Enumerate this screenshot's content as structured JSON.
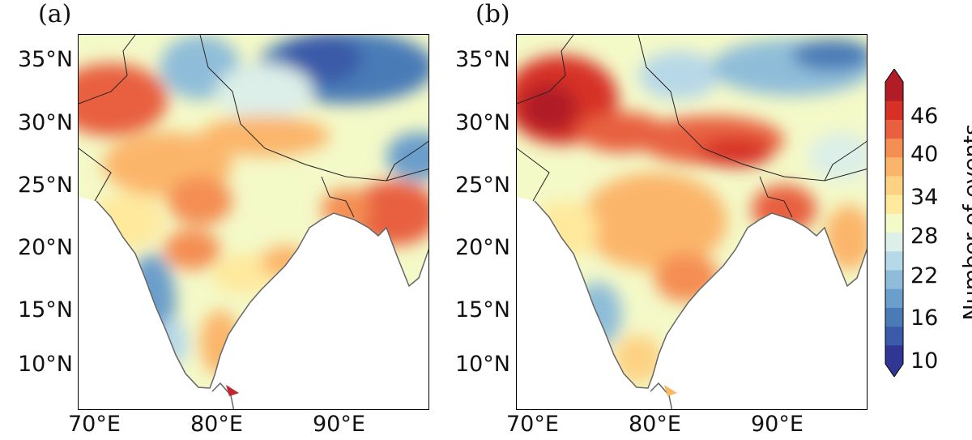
{
  "panels": [
    {
      "label": "(a)"
    },
    {
      "label": "(b)"
    }
  ],
  "axes": {
    "lat_ticks": [
      "35°N",
      "30°N",
      "25°N",
      "20°N",
      "15°N",
      "10°N"
    ],
    "lon_ticks": [
      "70°E",
      "80°E",
      "90°E"
    ]
  },
  "colorbar": {
    "label": "Number of events",
    "ticks": [
      "46",
      "40",
      "34",
      "28",
      "22",
      "16",
      "10"
    ],
    "colors": [
      "#313695",
      "#3b5aa8",
      "#4a7bb7",
      "#6a9ecb",
      "#8fbdd9",
      "#b7d8e8",
      "#dcefe8",
      "#f4f9c8",
      "#fee99d",
      "#fdd283",
      "#fbb56a",
      "#f48e52",
      "#e8603f",
      "#d73027",
      "#b01d26"
    ],
    "extend": "both"
  }
}
